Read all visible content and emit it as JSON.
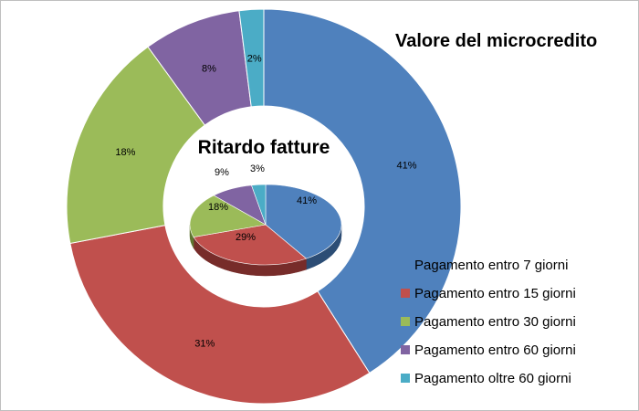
{
  "chart_data": [
    {
      "type": "donut",
      "title": "Valore del microcredito",
      "categories": [
        "Pagamento entro 7  giorni",
        "Pagamento entro 15 giorni",
        "Pagamento entro 30 giorni",
        "Pagamento entro 60 giorni",
        "Pagamento oltre 60 giorni"
      ],
      "values": [
        41,
        31,
        18,
        8,
        2
      ],
      "labels": [
        "41%",
        "31%",
        "18%",
        "8%",
        "2%"
      ],
      "legend_position": "bottom-right"
    },
    {
      "type": "pie",
      "style": "3d",
      "title": "Ritardo fatture",
      "categories": [
        "Pagamento entro 7  giorni",
        "Pagamento entro 15 giorni",
        "Pagamento entro 30 giorni",
        "Pagamento entro 60 giorni",
        "Pagamento oltre 60 giorni"
      ],
      "values": [
        41,
        29,
        18,
        9,
        3
      ],
      "labels": [
        "41%",
        "29%",
        "18%",
        "9%",
        "3%"
      ]
    }
  ],
  "colors": [
    "#4f81bd",
    "#c0504d",
    "#9bbb59",
    "#8064a2",
    "#4bacc6"
  ],
  "dark_colors": [
    "#2c4d75",
    "#772c2a",
    "#5f7530",
    "#4d3b62",
    "#276a7c"
  ]
}
